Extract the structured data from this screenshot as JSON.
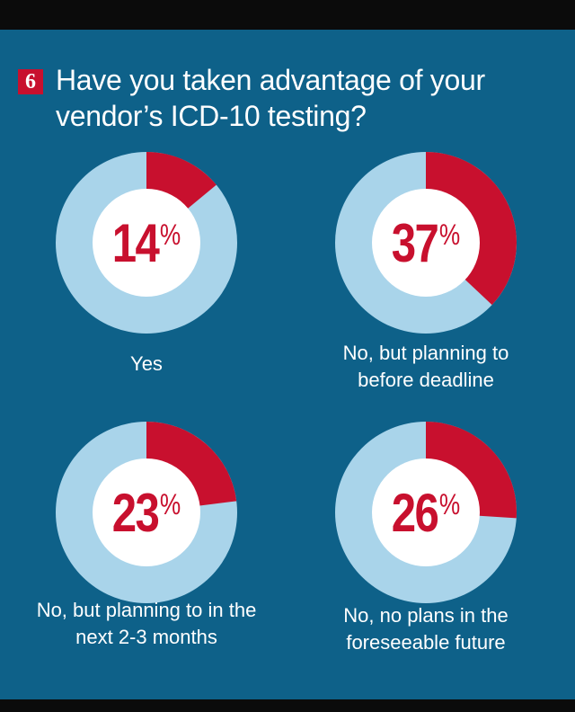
{
  "question_number": "6",
  "title": "Have you taken advantage of your vendor’s ICD-10 testing?",
  "colors": {
    "background": "#0e6189",
    "accent": "#c8102e",
    "ring": "#a9d4ea",
    "center": "#ffffff"
  },
  "percent_symbol": "%",
  "chart_data": [
    {
      "type": "pie",
      "title": "Have you taken advantage of your vendor’s ICD-10 testing?",
      "value": 14,
      "display": "14",
      "label": "Yes"
    },
    {
      "type": "pie",
      "title": "Have you taken advantage of your vendor’s ICD-10 testing?",
      "value": 37,
      "display": "37",
      "label_lines": [
        "No, but planning to",
        "before deadline"
      ]
    },
    {
      "type": "pie",
      "title": "Have you taken advantage of your vendor’s ICD-10 testing?",
      "value": 23,
      "display": "23",
      "label_lines": [
        "No, but planning to in the",
        "next 2-3 months"
      ]
    },
    {
      "type": "pie",
      "title": "Have you taken advantage of your vendor’s ICD-10 testing?",
      "value": 26,
      "display": "26",
      "label_lines": [
        "No, no plans in the",
        "foreseeable future"
      ]
    }
  ]
}
